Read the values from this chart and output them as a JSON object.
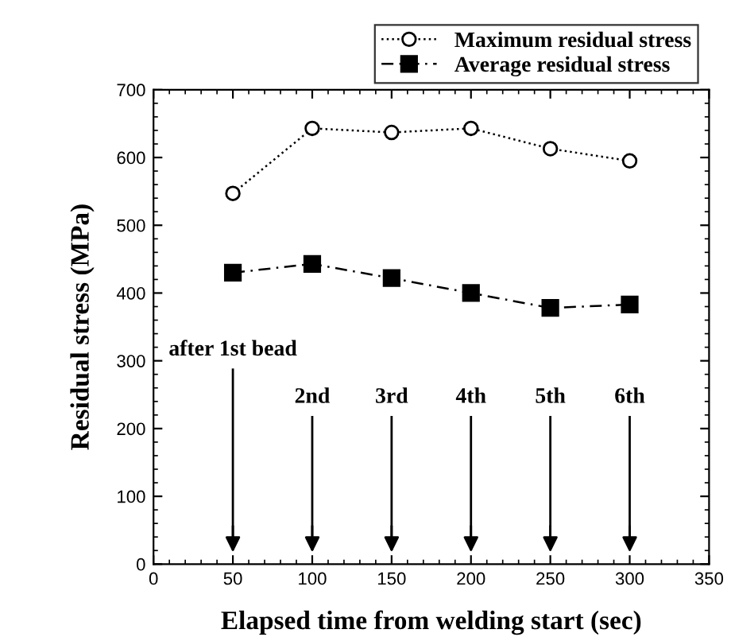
{
  "chart_data": {
    "type": "line",
    "xlabel": "Elapsed time from welding start (sec)",
    "ylabel": "Residual stress (MPa)",
    "x": [
      50,
      100,
      150,
      200,
      250,
      300
    ],
    "series": [
      {
        "name": "Maximum residual stress",
        "color": "#000000",
        "values": [
          547,
          643,
          637,
          643,
          613,
          595
        ],
        "marker": "circle",
        "line_style": "dotted"
      },
      {
        "name": "Average residual stress",
        "color": "#000000",
        "values": [
          430,
          443,
          422,
          400,
          378,
          383
        ],
        "marker": "square",
        "line_style": "dashed"
      }
    ],
    "xlim": [
      0,
      350
    ],
    "xticks": [
      0,
      50,
      100,
      150,
      200,
      250,
      300,
      350
    ],
    "ylim": [
      0,
      700
    ],
    "yticks": [
      0,
      100,
      200,
      300,
      400,
      500,
      600,
      700
    ],
    "grid": false,
    "legend": "top right",
    "ref_lines": [
      {
        "axis": "x",
        "value": 50,
        "label": "after 1st bead"
      },
      {
        "axis": "x",
        "value": 100,
        "label": "2nd"
      },
      {
        "axis": "x",
        "value": 150,
        "label": "3rd"
      },
      {
        "axis": "x",
        "value": 200,
        "label": "4th"
      },
      {
        "axis": "x",
        "value": 250,
        "label": "5th"
      },
      {
        "axis": "x",
        "value": 300,
        "label": "6th"
      }
    ]
  }
}
